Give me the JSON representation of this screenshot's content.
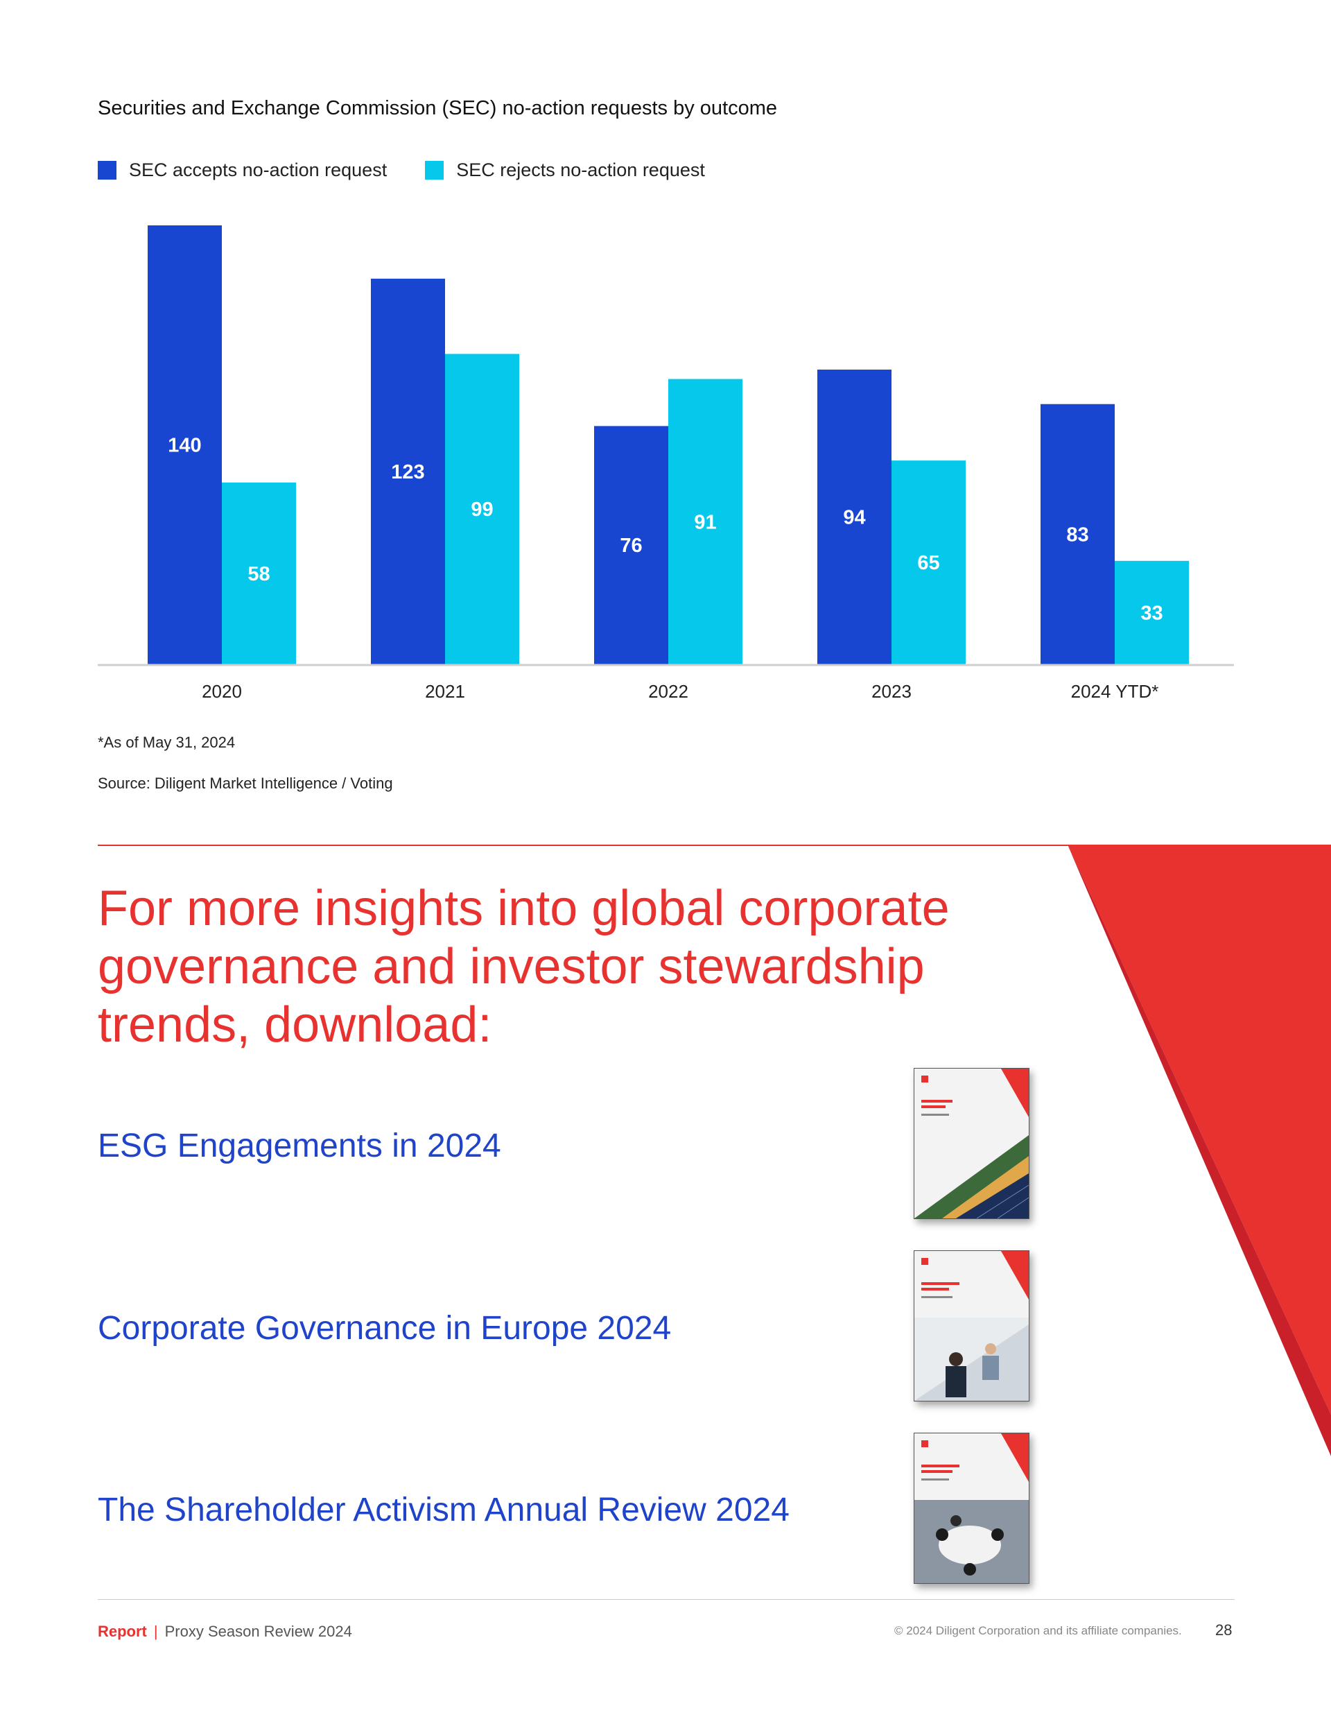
{
  "chart_data": {
    "type": "bar",
    "title": "Securities and Exchange Commission (SEC) no-action requests by outcome",
    "categories": [
      "2020",
      "2021",
      "2022",
      "2023",
      "2024 YTD*"
    ],
    "series": [
      {
        "name": "SEC accepts no-action request",
        "color": "#1846d1",
        "values": [
          140,
          123,
          76,
          94,
          83
        ]
      },
      {
        "name": "SEC rejects no-action request",
        "color": "#06c8ea",
        "values": [
          58,
          99,
          91,
          65,
          33
        ]
      }
    ],
    "ylim": [
      0,
      140
    ],
    "grid": false,
    "legend": "top-left",
    "label_color": "#ffffff"
  },
  "notes": {
    "footnote": "*As of May 31, 2024",
    "source": "Source: Diligent Market Intelligence / Voting"
  },
  "cta": {
    "heading": "For more insights into global corporate governance and investor stewardship trends, download:",
    "links": [
      {
        "label": "ESG Engagements in 2024"
      },
      {
        "label": "Corporate Governance in Europe 2024"
      },
      {
        "label": "The Shareholder Activism Annual Review 2024"
      }
    ]
  },
  "footer": {
    "report": "Report",
    "separator": "|",
    "doc_title": "Proxy Season Review 2024",
    "copyright": "© 2024 Diligent Corporation and its affiliate companies.",
    "page": "28"
  },
  "colors": {
    "accent_red": "#e8322f",
    "link_blue": "#1f43c9",
    "series_dark": "#1846d1",
    "series_light": "#06c8ea"
  }
}
